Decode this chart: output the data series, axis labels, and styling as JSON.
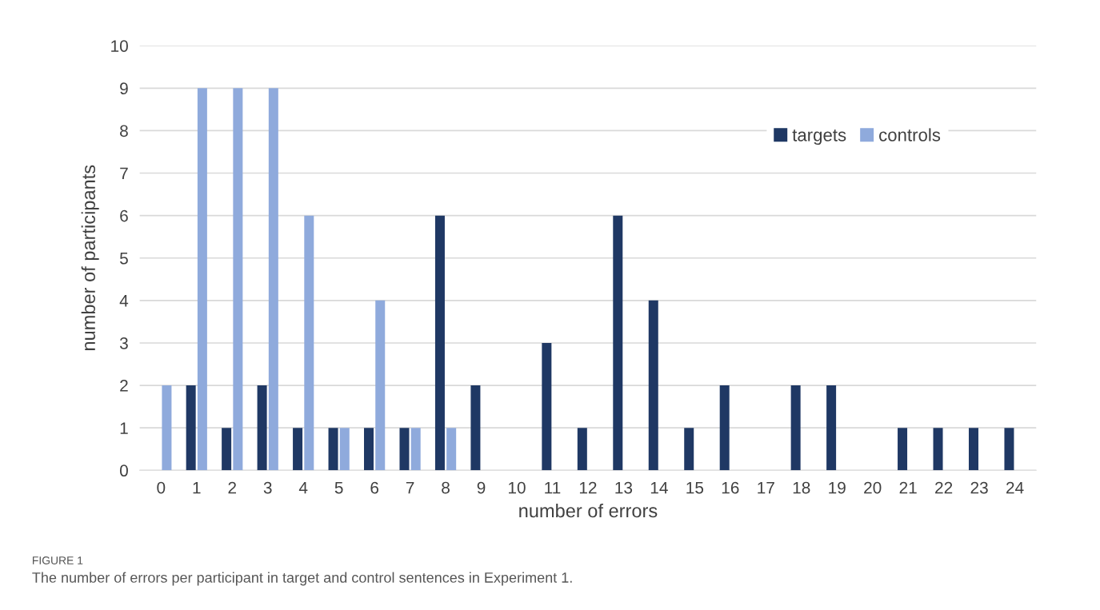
{
  "chart_data": {
    "type": "bar",
    "xlabel": "number of errors",
    "ylabel": "number of participants",
    "categories": [
      "0",
      "1",
      "2",
      "3",
      "4",
      "5",
      "6",
      "7",
      "8",
      "9",
      "10",
      "11",
      "12",
      "13",
      "14",
      "15",
      "16",
      "17",
      "18",
      "19",
      "20",
      "21",
      "22",
      "23",
      "24"
    ],
    "series": [
      {
        "name": "targets",
        "color": "#1f3864",
        "values": [
          0,
          2,
          1,
          2,
          1,
          1,
          1,
          1,
          6,
          2,
          0,
          3,
          1,
          6,
          4,
          1,
          2,
          0,
          2,
          2,
          0,
          1,
          1,
          1,
          1
        ]
      },
      {
        "name": "controls",
        "color": "#8faadc",
        "values": [
          2,
          9,
          9,
          9,
          6,
          1,
          4,
          1,
          1,
          0,
          0,
          0,
          0,
          0,
          0,
          0,
          0,
          0,
          0,
          0,
          0,
          0,
          0,
          0,
          0
        ]
      }
    ],
    "ylim": [
      0,
      10
    ],
    "yticks": [
      0,
      1,
      2,
      3,
      4,
      5,
      6,
      7,
      8,
      9,
      10
    ],
    "grid": "y",
    "legend": "top right",
    "annotations": [
      "FIGURE 1",
      "The number of errors per participant in target and control sentences in Experiment 1."
    ]
  }
}
